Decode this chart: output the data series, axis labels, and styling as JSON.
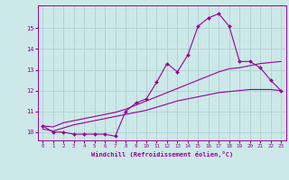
{
  "xlabel": "Windchill (Refroidissement éolien,°C)",
  "x_values": [
    0,
    1,
    2,
    3,
    4,
    5,
    6,
    7,
    8,
    9,
    10,
    11,
    12,
    13,
    14,
    15,
    16,
    17,
    18,
    19,
    20,
    21,
    22,
    23
  ],
  "line_jagged": [
    10.3,
    10.0,
    10.0,
    9.9,
    9.9,
    9.9,
    9.9,
    9.8,
    11.0,
    11.4,
    11.6,
    12.4,
    13.3,
    12.9,
    13.7,
    15.1,
    15.5,
    15.7,
    15.1,
    13.4,
    13.4,
    13.1,
    12.5,
    12.0
  ],
  "line_upper": [
    10.3,
    10.25,
    10.45,
    10.55,
    10.65,
    10.75,
    10.85,
    10.95,
    11.1,
    11.3,
    11.5,
    11.7,
    11.9,
    12.1,
    12.3,
    12.5,
    12.7,
    12.9,
    13.05,
    13.1,
    13.2,
    13.3,
    13.35,
    13.4
  ],
  "line_lower": [
    10.15,
    10.05,
    10.2,
    10.35,
    10.45,
    10.55,
    10.65,
    10.75,
    10.85,
    10.95,
    11.05,
    11.2,
    11.35,
    11.5,
    11.6,
    11.7,
    11.8,
    11.9,
    11.95,
    12.0,
    12.05,
    12.05,
    12.05,
    12.0
  ],
  "line_color": "#990099",
  "bg_color": "#cce8e8",
  "grid_color": "#aacccc",
  "ylim": [
    9.6,
    16.1
  ],
  "xlim": [
    -0.5,
    23.5
  ],
  "yticks": [
    10,
    11,
    12,
    13,
    14,
    15
  ],
  "xticks": [
    0,
    1,
    2,
    3,
    4,
    5,
    6,
    7,
    8,
    9,
    10,
    11,
    12,
    13,
    14,
    15,
    16,
    17,
    18,
    19,
    20,
    21,
    22,
    23
  ]
}
